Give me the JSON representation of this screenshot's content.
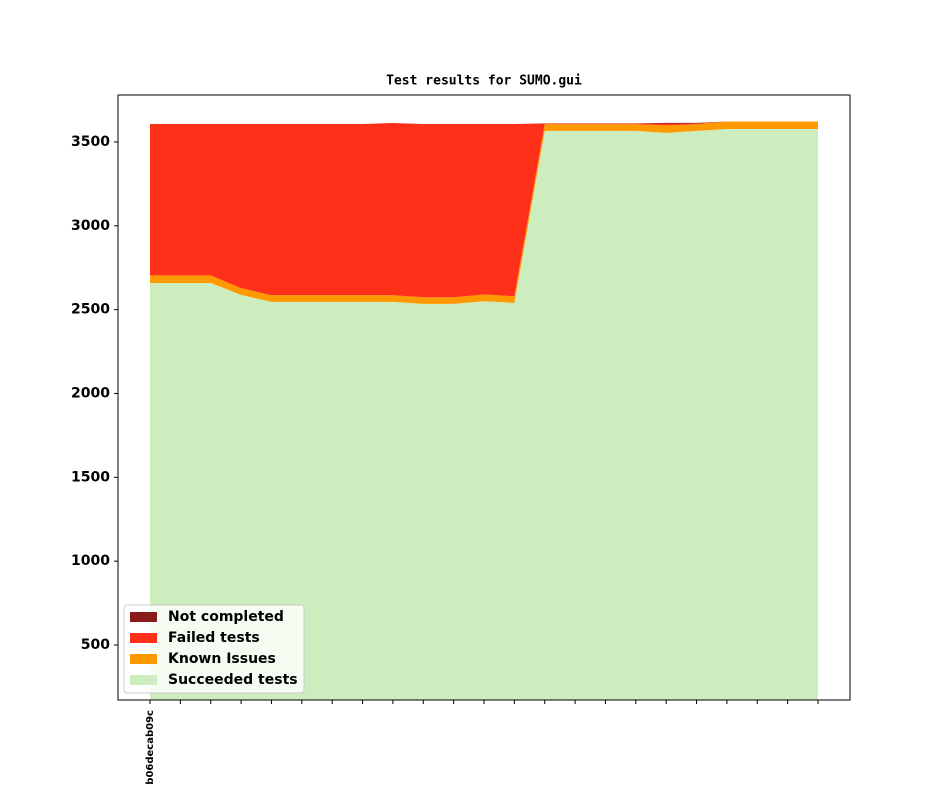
{
  "chart_data": {
    "type": "stackedarea",
    "title": "Test results for SUMO.gui",
    "categories": [
      "b06decab09c",
      null,
      null,
      null,
      null,
      null,
      null,
      null,
      null,
      null,
      null,
      null,
      null,
      null,
      null,
      null,
      null,
      null,
      null,
      null,
      null,
      null,
      null
    ],
    "series": [
      {
        "name": "Not completed",
        "color": "#8b1a1a",
        "values": [
          0,
          0,
          0,
          0,
          0,
          0,
          0,
          0,
          0,
          0,
          0,
          0,
          0,
          0,
          0,
          0,
          0,
          5,
          3,
          0,
          0,
          0,
          0
        ]
      },
      {
        "name": "Failed tests",
        "color": "#ff3019",
        "values": [
          903,
          903,
          903,
          979,
          1021,
          1021,
          1021,
          1021,
          1027,
          1033,
          1033,
          1017,
          1027,
          5,
          5,
          5,
          5,
          10,
          5,
          0,
          0,
          0,
          0
        ]
      },
      {
        "name": "Known Issues",
        "color": "#ff9900",
        "values": [
          45,
          45,
          45,
          40,
          40,
          40,
          40,
          40,
          40,
          40,
          40,
          40,
          40,
          40,
          40,
          40,
          40,
          45,
          40,
          45,
          45,
          45,
          45
        ]
      },
      {
        "name": "Succeeded tests",
        "color": "#ceedbf",
        "values": [
          2659,
          2659,
          2659,
          2588,
          2546,
          2546,
          2546,
          2546,
          2546,
          2534,
          2534,
          2550,
          2540,
          3566,
          3566,
          3566,
          3566,
          3554,
          3566,
          3577,
          3577,
          3577,
          3577
        ]
      }
    ],
    "ylim": [
      172,
      3780
    ],
    "yticks": [
      500,
      1000,
      1500,
      2000,
      2500,
      3000,
      3500
    ],
    "legend": "lower left",
    "grid": false
  }
}
